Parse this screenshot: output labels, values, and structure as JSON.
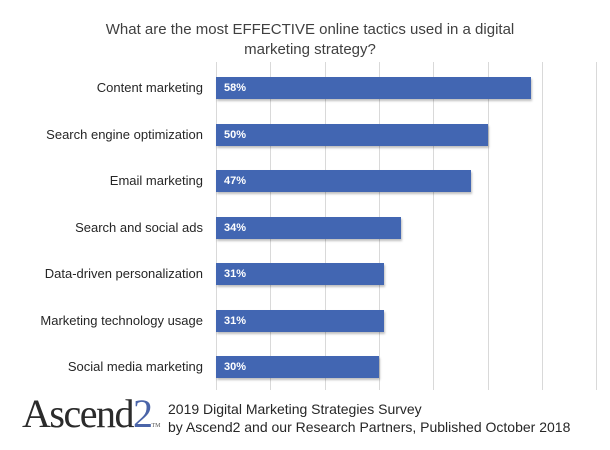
{
  "chart_data": {
    "type": "bar",
    "orientation": "horizontal",
    "title": "What are the most EFFECTIVE online tactics used in a digital marketing strategy?",
    "title_lines": [
      "What are the most EFFECTIVE online tactics used in a digital",
      "marketing strategy?"
    ],
    "categories": [
      "Content marketing",
      "Search engine optimization",
      "Email marketing",
      "Search and social ads",
      "Data-driven personalization",
      "Marketing technology usage",
      "Social media marketing"
    ],
    "values": [
      58,
      50,
      47,
      34,
      31,
      31,
      30
    ],
    "value_labels": [
      "58%",
      "50%",
      "47%",
      "34%",
      "31%",
      "31%",
      "30%"
    ],
    "xlabel": "",
    "ylabel": "",
    "xlim": [
      0,
      70
    ],
    "grid_step": 10,
    "grid": true,
    "axis_tick_labels_visible": false,
    "legend": null,
    "bar_color": "#4266b2"
  },
  "footer": {
    "logo_text": "Ascend",
    "logo_digit": "2",
    "logo_tm": "TM",
    "line1": "2019 Digital Marketing Strategies Survey",
    "line2": "by Ascend2 and our Research Partners, Published October 2018"
  }
}
